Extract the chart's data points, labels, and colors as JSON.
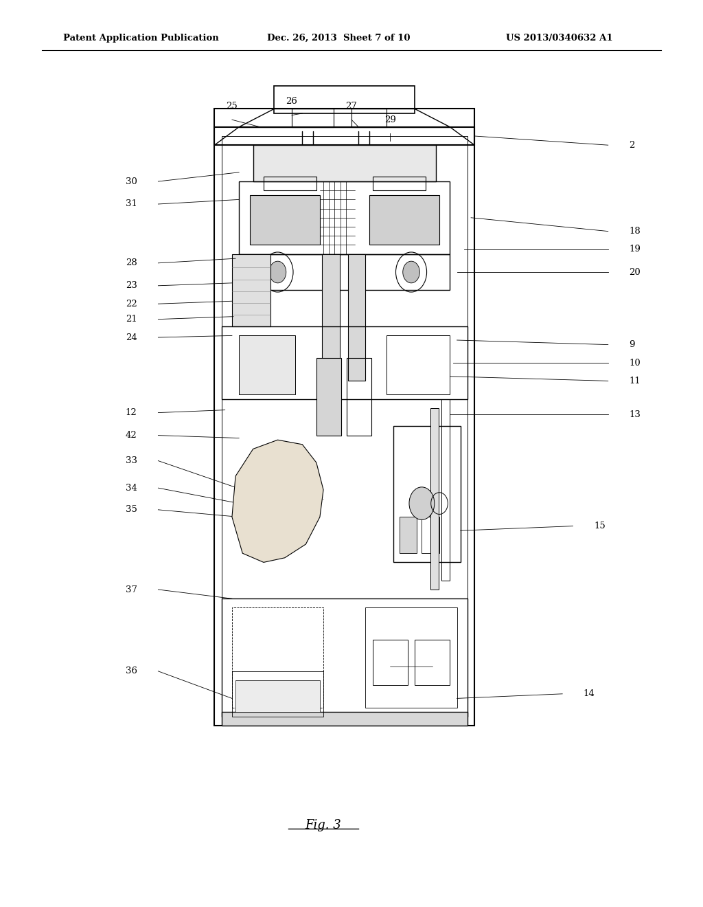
{
  "bg_color": "#ffffff",
  "header_text1": "Patent Application Publication",
  "header_text2": "Dec. 26, 2013  Sheet 7 of 10",
  "header_text3": "US 2013/0340632 A1",
  "fig_label": "Fig. 3"
}
